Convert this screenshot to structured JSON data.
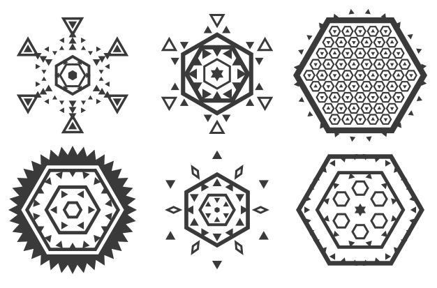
{
  "ink_color": "#3a3a3a",
  "background_color": "#ffffff",
  "ornaments": [
    {
      "name": "six-arm-star-snowflake-ornament",
      "style": "star-arms"
    },
    {
      "name": "triangle-tipped-star-ornament",
      "style": "star-rings"
    },
    {
      "name": "dense-hexagon-mosaic-ornament",
      "style": "hex-mosaic"
    },
    {
      "name": "zigzag-border-hexagon-ornament",
      "style": "zigzag-hex"
    },
    {
      "name": "rhombus-star-ornament",
      "style": "rhombus-star"
    },
    {
      "name": "framed-hexagon-ornament",
      "style": "framed-hex"
    }
  ]
}
